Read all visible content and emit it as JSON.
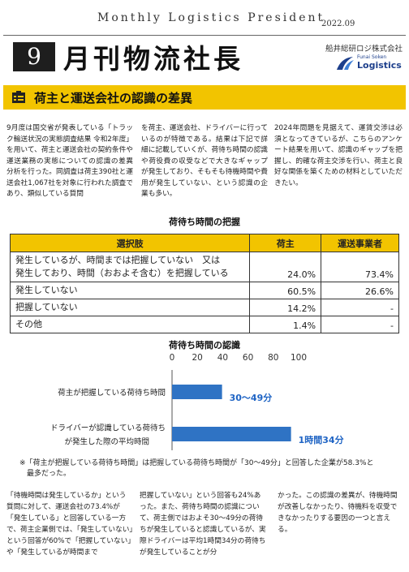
{
  "header": {
    "series": "Monthly Logistics President",
    "issue_date": "2022.09",
    "issue_number": "9",
    "title": "月刊物流社長",
    "company": "船井総研ロジ株式会社",
    "logo_small": "Funai Soken",
    "logo_big": "Logistics"
  },
  "banner": {
    "title": "荷主と運送会社の認識の差異",
    "icon": "clipboard-icon"
  },
  "intro": {
    "col1": "9月度は国交省が発表している「トラック輸送状況の実態調査結果 令和2年度」を用いて、荷主と運送会社の契約条件や運送業務の実態についての認識の差異分析を行った。同調査は荷主390社と運送会社1,067社を対象に行われた調査であり、類似している質問",
    "col2": "を荷主、運送会社、ドライバーに行っているのが特徴である。結果は下記で詳細に記載していくが、荷待ち時間の認識や荷役費の収受などで大きなギャップが発生しており、そもそも待機時間や費用が発生していない、という認識の企業も多い。",
    "col3": "2024年問題を見据えて、運賃交渉は必須となってきているが、こちらのアンケート結果を用いて、認識のギャップを把握し、的確な荷主交渉を行い、荷主と良好な関係を築くための材料としていただきたい。"
  },
  "table": {
    "title": "荷待ち時間の把握",
    "headers": [
      "選択肢",
      "荷主",
      "運送事業者"
    ],
    "rows": [
      {
        "option_line1": "発生しているが、時間までは把握していない　又は",
        "option_line2": "発生しており、時間（おおよそ含む）を把握している",
        "shipper": "24.0%",
        "carrier": "73.4%"
      },
      {
        "option_line1": "発生していない",
        "shipper": "60.5%",
        "carrier": "26.6%"
      },
      {
        "option_line1": "把握していない",
        "shipper": "14.2%",
        "carrier": "-"
      },
      {
        "option_line1": "その他",
        "shipper": "1.4%",
        "carrier": "-"
      }
    ]
  },
  "chart_data": {
    "type": "bar",
    "orientation": "horizontal",
    "title": "荷待ち時間の認識",
    "x_ticks": [
      "0",
      "20",
      "40",
      "60",
      "80",
      "100"
    ],
    "xlim": [
      0,
      100
    ],
    "categories": [
      [
        "荷主が把握している荷待ち時間"
      ],
      [
        "ドライバーが認識している荷待ち",
        "が発生した際の平均時間"
      ]
    ],
    "values": [
      39.5,
      94
    ],
    "value_labels": [
      "30～49分",
      "1時間34分"
    ],
    "bar_color": "#2f73c4",
    "label_color": "#1f64c4",
    "note_line1": "※「荷主が把握している荷待ち時間」は把握している荷待ち時間が「30～49分」と回答した企業が58.3%と",
    "note_line2": "最多だった。"
  },
  "bottom": {
    "col1": "「待機時間は発生しているか」という質問に対して、運送会社の73.4%が「発生している」と回答している一方で、荷主企業側では、「発生していない」という回答が60%で「把握していない」や「発生しているが時間まで",
    "col2": "把握していない」という回答も24%あった。また、荷待ち時間の認識について、荷主側ではおよそ30～49分の荷待ちが発生していると認識しているが、実際ドライバーは平均1時間34分の荷待ちが発生していることが分",
    "col3": "かった。この認識の差異が、待機時間が改善しなかったり、待機料を収受できなかったりする要因の一つと言える。"
  }
}
